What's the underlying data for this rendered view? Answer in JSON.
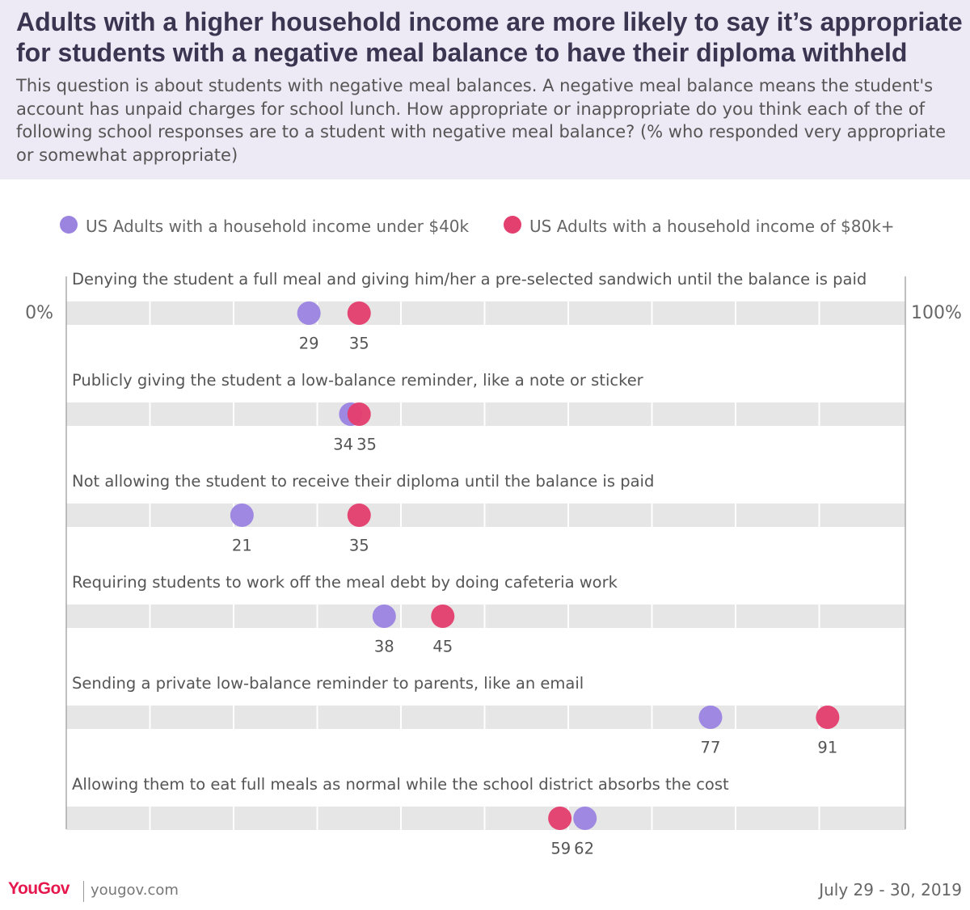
{
  "header": {
    "title": "Adults with a higher household income are more likely to say it’s appropriate for students with a negative meal balance to have their diploma withheld",
    "subtitle": "This question is about students with negative meal balances. A negative meal balance means the student's account has unpaid charges for school lunch. How appropriate or inappropriate do you think each of the of following school responses are to a student with negative meal balance? (% who responded very appropriate or somewhat appropriate)"
  },
  "chart_data": {
    "type": "scatter",
    "axis": {
      "min_label": "0%",
      "max_label": "100%",
      "xlim": [
        0,
        100
      ],
      "grid_step": 10
    },
    "legend_position": "top",
    "series": [
      {
        "name": "US Adults with a household income under $40k",
        "color": "#9b84e0"
      },
      {
        "name": "US Adults with a household income of $80k+",
        "color": "#e3406f"
      }
    ],
    "categories": [
      {
        "label": "Denying the student a full meal and giving him/her a pre-selected sandwich until the balance is paid",
        "values": [
          29,
          35
        ]
      },
      {
        "label": "Publicly giving the student a low-balance reminder, like a note or sticker",
        "values": [
          34,
          35
        ]
      },
      {
        "label": "Not allowing the student to receive their diploma until the balance is paid",
        "values": [
          21,
          35
        ]
      },
      {
        "label": "Requiring students to work off the meal debt by doing cafeteria work",
        "values": [
          38,
          45
        ]
      },
      {
        "label": "Sending a private low-balance reminder to parents, like an email",
        "values": [
          77,
          91
        ]
      },
      {
        "label": "Allowing them to eat full meals as normal while the school district absorbs the cost",
        "values": [
          62,
          59
        ]
      }
    ]
  },
  "footer": {
    "logo": "YouGov",
    "site": "yougov.com",
    "date": "July 29 - 30, 2019"
  }
}
